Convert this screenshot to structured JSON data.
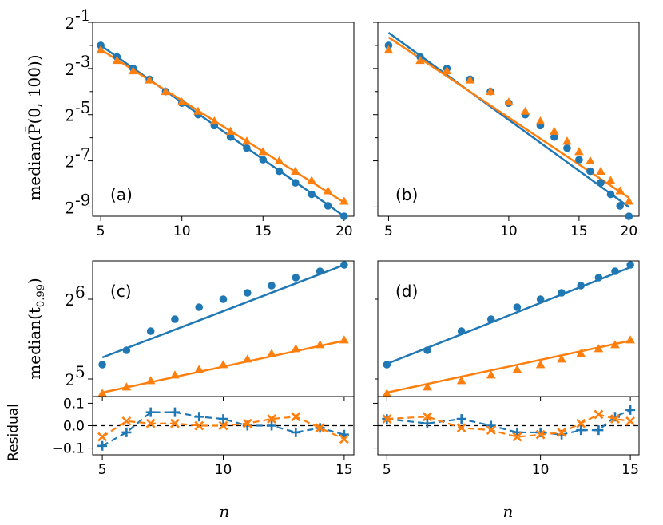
{
  "figure": {
    "xlabel": "n",
    "ylabel_top": "median(P̄(0, 100))",
    "ylabel_mid": "median(t",
    "ylabel_mid_sub": "0.99",
    "ylabel_bot": "Residual",
    "colors": {
      "blue": "#1f77b4",
      "orange": "#ff7f0e"
    }
  },
  "chart_data": [
    {
      "id": "a",
      "type": "scatter",
      "panel_label": "(a)",
      "xscale": "linear",
      "yscale": "log2",
      "xlim": [
        4.5,
        20.6
      ],
      "ylim_log2": [
        -9.4,
        -1.0
      ],
      "xticks": [
        5,
        10,
        15,
        20
      ],
      "xticklabels": [
        "5",
        "10",
        "15",
        "20"
      ],
      "yticks_log2": [
        -9,
        -8,
        -7,
        -6,
        -5,
        -4,
        -3,
        -2,
        -1
      ],
      "yticklabels": {
        "-1": "-1",
        "-3": "-3",
        "-5": "-5",
        "-7": "-7",
        "-9": "-9"
      },
      "ytick_base": "2",
      "series": [
        {
          "color": "blue",
          "marker": "circle",
          "x": [
            5,
            6,
            7,
            8,
            9,
            10,
            11,
            12,
            13,
            14,
            15,
            16,
            17,
            18,
            19,
            20
          ],
          "y_log2": [
            -2.0,
            -2.5,
            -3.0,
            -3.47,
            -4.0,
            -4.5,
            -5.0,
            -5.47,
            -5.97,
            -6.45,
            -6.95,
            -7.45,
            -7.95,
            -8.45,
            -8.95,
            -9.4
          ]
        },
        {
          "color": "orange",
          "marker": "triangle",
          "x": [
            5,
            6,
            7,
            8,
            9,
            10,
            11,
            12,
            13,
            14,
            15,
            16,
            17,
            18,
            19,
            20
          ],
          "y_log2": [
            -2.2,
            -2.65,
            -3.1,
            -3.5,
            -4.0,
            -4.45,
            -4.85,
            -5.28,
            -5.72,
            -6.15,
            -6.6,
            -7.0,
            -7.45,
            -7.85,
            -8.3,
            -8.75
          ]
        }
      ],
      "fits": [
        {
          "color": "blue",
          "x": [
            5,
            20
          ],
          "y_log2": [
            -2.0,
            -9.4
          ]
        },
        {
          "color": "orange",
          "x": [
            5,
            20
          ],
          "y_log2": [
            -2.18,
            -8.8
          ]
        }
      ]
    },
    {
      "id": "b",
      "type": "scatter",
      "panel_label": "(b)",
      "xscale": "log",
      "yscale": "log2",
      "xlim": [
        4.7,
        21.2
      ],
      "ylim_log2": [
        -9.4,
        -1.0
      ],
      "xticks": [
        5,
        10,
        15,
        20
      ],
      "xticklabels": [
        "5",
        "10",
        "15",
        "20"
      ],
      "yticks_log2": [
        -9,
        -8,
        -7,
        -6,
        -5,
        -4,
        -3,
        -2,
        -1
      ],
      "yticklabels": {},
      "ytick_base": "2",
      "series": [
        {
          "color": "blue",
          "marker": "circle",
          "x": [
            5,
            6,
            7,
            8,
            9,
            10,
            11,
            12,
            13,
            14,
            15,
            16,
            17,
            18,
            19,
            20
          ],
          "y_log2": [
            -2.0,
            -2.5,
            -3.0,
            -3.47,
            -4.0,
            -4.5,
            -5.0,
            -5.47,
            -5.97,
            -6.45,
            -6.95,
            -7.45,
            -7.95,
            -8.45,
            -8.95,
            -9.4
          ]
        },
        {
          "color": "orange",
          "marker": "triangle",
          "x": [
            5,
            6,
            7,
            8,
            9,
            10,
            11,
            12,
            13,
            14,
            15,
            16,
            17,
            18,
            19,
            20
          ],
          "y_log2": [
            -2.2,
            -2.65,
            -3.1,
            -3.5,
            -4.0,
            -4.45,
            -4.85,
            -5.28,
            -5.72,
            -6.15,
            -6.6,
            -7.0,
            -7.45,
            -7.85,
            -8.3,
            -8.75
          ]
        }
      ],
      "fits": [
        {
          "color": "blue",
          "x": [
            5,
            20
          ],
          "y_log2": [
            -1.45,
            -9.0
          ]
        },
        {
          "color": "orange",
          "x": [
            5,
            20
          ],
          "y_log2": [
            -1.65,
            -8.6
          ]
        }
      ]
    },
    {
      "id": "c",
      "type": "scatter",
      "panel_label": "(c)",
      "xscale": "linear",
      "yscale": "log2",
      "xlim": [
        4.6,
        15.4
      ],
      "ylim_log2": [
        4.78,
        6.48
      ],
      "xticks": [
        5,
        10,
        15
      ],
      "xticklabels": [],
      "yticks_log2": [
        5,
        6
      ],
      "yticklabels": {
        "5": "5",
        "6": "6"
      },
      "ytick_base": "2",
      "series": [
        {
          "color": "blue",
          "marker": "circle",
          "x": [
            5,
            6,
            7,
            8,
            9,
            10,
            11,
            12,
            13,
            14,
            15
          ],
          "y_log2": [
            5.18,
            5.36,
            5.6,
            5.75,
            5.9,
            6.0,
            6.08,
            6.17,
            6.27,
            6.35,
            6.43
          ]
        },
        {
          "color": "orange",
          "marker": "triangle",
          "x": [
            5,
            6,
            7,
            8,
            9,
            10,
            11,
            12,
            13,
            14,
            15
          ],
          "y_log2": [
            4.82,
            4.9,
            4.98,
            5.05,
            5.12,
            5.18,
            5.25,
            5.32,
            5.38,
            5.43,
            5.49
          ]
        }
      ],
      "fits": [
        {
          "color": "blue",
          "x": [
            5,
            15
          ],
          "y_log2": [
            5.27,
            6.43
          ]
        },
        {
          "color": "orange",
          "x": [
            5,
            15
          ],
          "y_log2": [
            4.83,
            5.48
          ]
        }
      ]
    },
    {
      "id": "d",
      "type": "scatter",
      "panel_label": "(d)",
      "xscale": "log",
      "yscale": "log2",
      "xlim": [
        4.8,
        15.6
      ],
      "ylim_log2": [
        4.78,
        6.48
      ],
      "xticks": [
        5,
        10,
        15
      ],
      "xticklabels": [],
      "yticks_log2": [
        5,
        6
      ],
      "yticklabels": {},
      "ytick_base": "2",
      "series": [
        {
          "color": "blue",
          "marker": "circle",
          "x": [
            5,
            6,
            7,
            8,
            9,
            10,
            11,
            12,
            13,
            14,
            15
          ],
          "y_log2": [
            5.18,
            5.36,
            5.6,
            5.75,
            5.9,
            6.0,
            6.08,
            6.17,
            6.27,
            6.35,
            6.43
          ]
        },
        {
          "color": "orange",
          "marker": "triangle",
          "x": [
            5,
            6,
            7,
            8,
            9,
            10,
            11,
            12,
            13,
            14,
            15
          ],
          "y_log2": [
            4.82,
            4.9,
            4.98,
            5.05,
            5.12,
            5.18,
            5.25,
            5.32,
            5.38,
            5.43,
            5.49
          ]
        }
      ],
      "fits": [
        {
          "color": "blue",
          "x": [
            5,
            15
          ],
          "y_log2": [
            5.19,
            6.4
          ]
        },
        {
          "color": "orange",
          "x": [
            5,
            15
          ],
          "y_log2": [
            4.83,
            5.48
          ]
        }
      ]
    },
    {
      "id": "c-res",
      "type": "line",
      "ylabel": "Residual",
      "xscale": "linear",
      "xlim": [
        4.6,
        15.4
      ],
      "ylim": [
        -0.13,
        0.13
      ],
      "xticks": [
        5,
        10,
        15
      ],
      "xticklabels": [
        "5",
        "10",
        "15"
      ],
      "yticks": [
        -0.1,
        0.0,
        0.1
      ],
      "yticklabels": [
        "−0.1",
        "0.0",
        "0.1"
      ],
      "zero_line": true,
      "series": [
        {
          "color": "blue",
          "marker": "plus",
          "x": [
            5,
            6,
            7,
            8,
            9,
            10,
            11,
            12,
            13,
            14,
            15
          ],
          "y": [
            -0.09,
            -0.03,
            0.06,
            0.06,
            0.04,
            0.03,
            0.0,
            0.0,
            -0.03,
            -0.01,
            -0.04
          ]
        },
        {
          "color": "orange",
          "marker": "x",
          "x": [
            5,
            6,
            7,
            8,
            9,
            10,
            11,
            12,
            13,
            14,
            15
          ],
          "y": [
            -0.05,
            0.02,
            0.01,
            0.01,
            0.0,
            0.0,
            0.01,
            0.03,
            0.04,
            -0.01,
            -0.06
          ]
        }
      ]
    },
    {
      "id": "d-res",
      "type": "line",
      "xscale": "log",
      "xlim": [
        4.8,
        15.6
      ],
      "ylim": [
        -0.13,
        0.13
      ],
      "xticks": [
        5,
        10,
        15
      ],
      "xticklabels": [
        "5",
        "10",
        "15"
      ],
      "yticks": [
        -0.1,
        0.0,
        0.1
      ],
      "yticklabels": [],
      "zero_line": true,
      "series": [
        {
          "color": "blue",
          "marker": "plus",
          "x": [
            5,
            6,
            7,
            8,
            9,
            10,
            11,
            12,
            13,
            14,
            15
          ],
          "y": [
            0.03,
            0.01,
            0.03,
            0.0,
            -0.03,
            -0.03,
            -0.04,
            -0.02,
            -0.02,
            0.04,
            0.07
          ]
        },
        {
          "color": "orange",
          "marker": "x",
          "x": [
            5,
            6,
            7,
            8,
            9,
            10,
            11,
            12,
            13,
            14,
            15
          ],
          "y": [
            0.03,
            0.04,
            -0.01,
            -0.02,
            -0.05,
            -0.04,
            -0.03,
            0.01,
            0.05,
            0.03,
            0.02
          ]
        }
      ]
    }
  ]
}
